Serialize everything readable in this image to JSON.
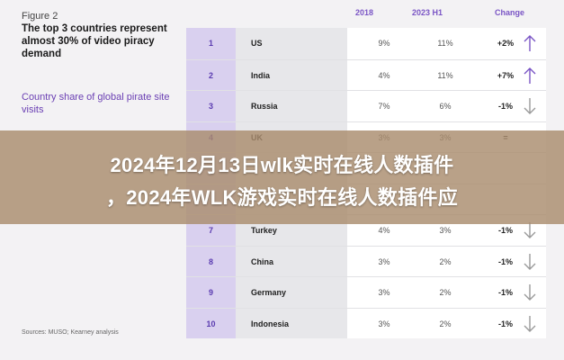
{
  "figure": {
    "label": "Figure 2",
    "headline": "The top 3 countries represent almost 30% of video piracy demand",
    "subhead": "Country share of global pirate site visits",
    "source": "Sources: MUSO; Kearney analysis"
  },
  "columns": {
    "y2018": "2018",
    "h1": "2023 H1",
    "change": "Change"
  },
  "rows": [
    {
      "rank": "1",
      "country": "US",
      "v2018": "9%",
      "vh1": "11%",
      "change": "+2%",
      "trend": "up"
    },
    {
      "rank": "2",
      "country": "India",
      "v2018": "4%",
      "vh1": "11%",
      "change": "+7%",
      "trend": "up"
    },
    {
      "rank": "3",
      "country": "Russia",
      "v2018": "7%",
      "vh1": "6%",
      "change": "-1%",
      "trend": "down"
    },
    {
      "rank": "4",
      "country": "UK",
      "v2018": "3%",
      "vh1": "3%",
      "change": "=",
      "trend": "none"
    },
    {
      "rank": "",
      "country": "",
      "v2018": "",
      "vh1": "",
      "change": "",
      "trend": "none"
    },
    {
      "rank": "",
      "country": "",
      "v2018": "",
      "vh1": "",
      "change": "",
      "trend": "none"
    },
    {
      "rank": "7",
      "country": "Turkey",
      "v2018": "4%",
      "vh1": "3%",
      "change": "-1%",
      "trend": "down"
    },
    {
      "rank": "8",
      "country": "China",
      "v2018": "3%",
      "vh1": "2%",
      "change": "-1%",
      "trend": "down"
    },
    {
      "rank": "9",
      "country": "Germany",
      "v2018": "3%",
      "vh1": "2%",
      "change": "-1%",
      "trend": "down"
    },
    {
      "rank": "10",
      "country": "Indonesia",
      "v2018": "3%",
      "vh1": "2%",
      "change": "-1%",
      "trend": "down"
    }
  ],
  "banner": {
    "line1": "2024年12月13日wlk实时在线人数插件",
    "line2": "，2024年WLK游戏实时在线人数插件应"
  },
  "colors": {
    "accent": "#7a55c5",
    "up": "#7a55c5",
    "down": "#9a9a9a",
    "overlay": "#aa8c6e"
  }
}
